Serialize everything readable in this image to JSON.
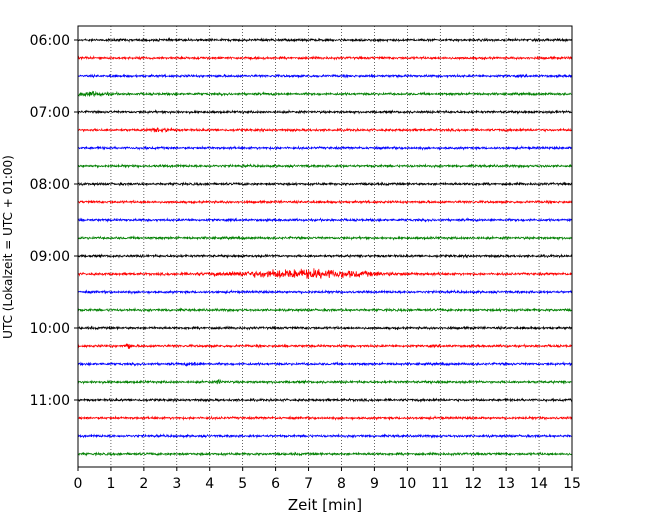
{
  "chart_data": {
    "type": "line",
    "title": "",
    "xlabel": "Zeit  [min]",
    "ylabel": "UTC (Lokalzeit = UTC + 01:00)",
    "xlim": [
      0,
      15
    ],
    "x_ticks": [
      "0",
      "1",
      "2",
      "3",
      "4",
      "5",
      "6",
      "7",
      "8",
      "9",
      "10",
      "11",
      "12",
      "13",
      "14",
      "15"
    ],
    "y_ticks": [
      "06:00",
      "07:00",
      "08:00",
      "09:00",
      "10:00",
      "11:00"
    ],
    "grid": "vertical dotted",
    "trace_colors": [
      "#000000",
      "#ff0000",
      "#0000ff",
      "#008000"
    ],
    "traces": [
      {
        "start": "06:00",
        "color": "#000000"
      },
      {
        "start": "06:15",
        "color": "#ff0000"
      },
      {
        "start": "06:30",
        "color": "#0000ff"
      },
      {
        "start": "06:45",
        "color": "#008000"
      },
      {
        "start": "07:00",
        "color": "#000000"
      },
      {
        "start": "07:15",
        "color": "#ff0000"
      },
      {
        "start": "07:30",
        "color": "#0000ff"
      },
      {
        "start": "07:45",
        "color": "#008000"
      },
      {
        "start": "08:00",
        "color": "#000000"
      },
      {
        "start": "08:15",
        "color": "#ff0000"
      },
      {
        "start": "08:30",
        "color": "#0000ff"
      },
      {
        "start": "08:45",
        "color": "#008000"
      },
      {
        "start": "09:00",
        "color": "#000000"
      },
      {
        "start": "09:15",
        "color": "#ff0000"
      },
      {
        "start": "09:30",
        "color": "#0000ff"
      },
      {
        "start": "09:45",
        "color": "#008000"
      },
      {
        "start": "10:00",
        "color": "#000000"
      },
      {
        "start": "10:15",
        "color": "#ff0000"
      },
      {
        "start": "10:30",
        "color": "#0000ff"
      },
      {
        "start": "10:45",
        "color": "#008000"
      },
      {
        "start": "11:00",
        "color": "#000000"
      },
      {
        "start": "11:15",
        "color": "#ff0000"
      },
      {
        "start": "11:30",
        "color": "#0000ff"
      },
      {
        "start": "11:45",
        "color": "#008000"
      }
    ],
    "events": [
      {
        "trace": "06:45",
        "x_min": 0.3,
        "width_min": 0.8,
        "strength": 2.4
      },
      {
        "trace": "07:15",
        "x_min": 2.5,
        "width_min": 0.5,
        "strength": 2.0
      },
      {
        "trace": "09:15",
        "x_min": 6.9,
        "width_min": 3.0,
        "strength": 5.5
      },
      {
        "trace": "10:15",
        "x_min": 1.5,
        "width_min": 0.1,
        "strength": 6.0
      },
      {
        "trace": "10:30",
        "x_min": 3.5,
        "width_min": 0.3,
        "strength": 2.2
      },
      {
        "trace": "10:45",
        "x_min": 4.3,
        "width_min": 0.1,
        "strength": 3.0
      }
    ]
  }
}
